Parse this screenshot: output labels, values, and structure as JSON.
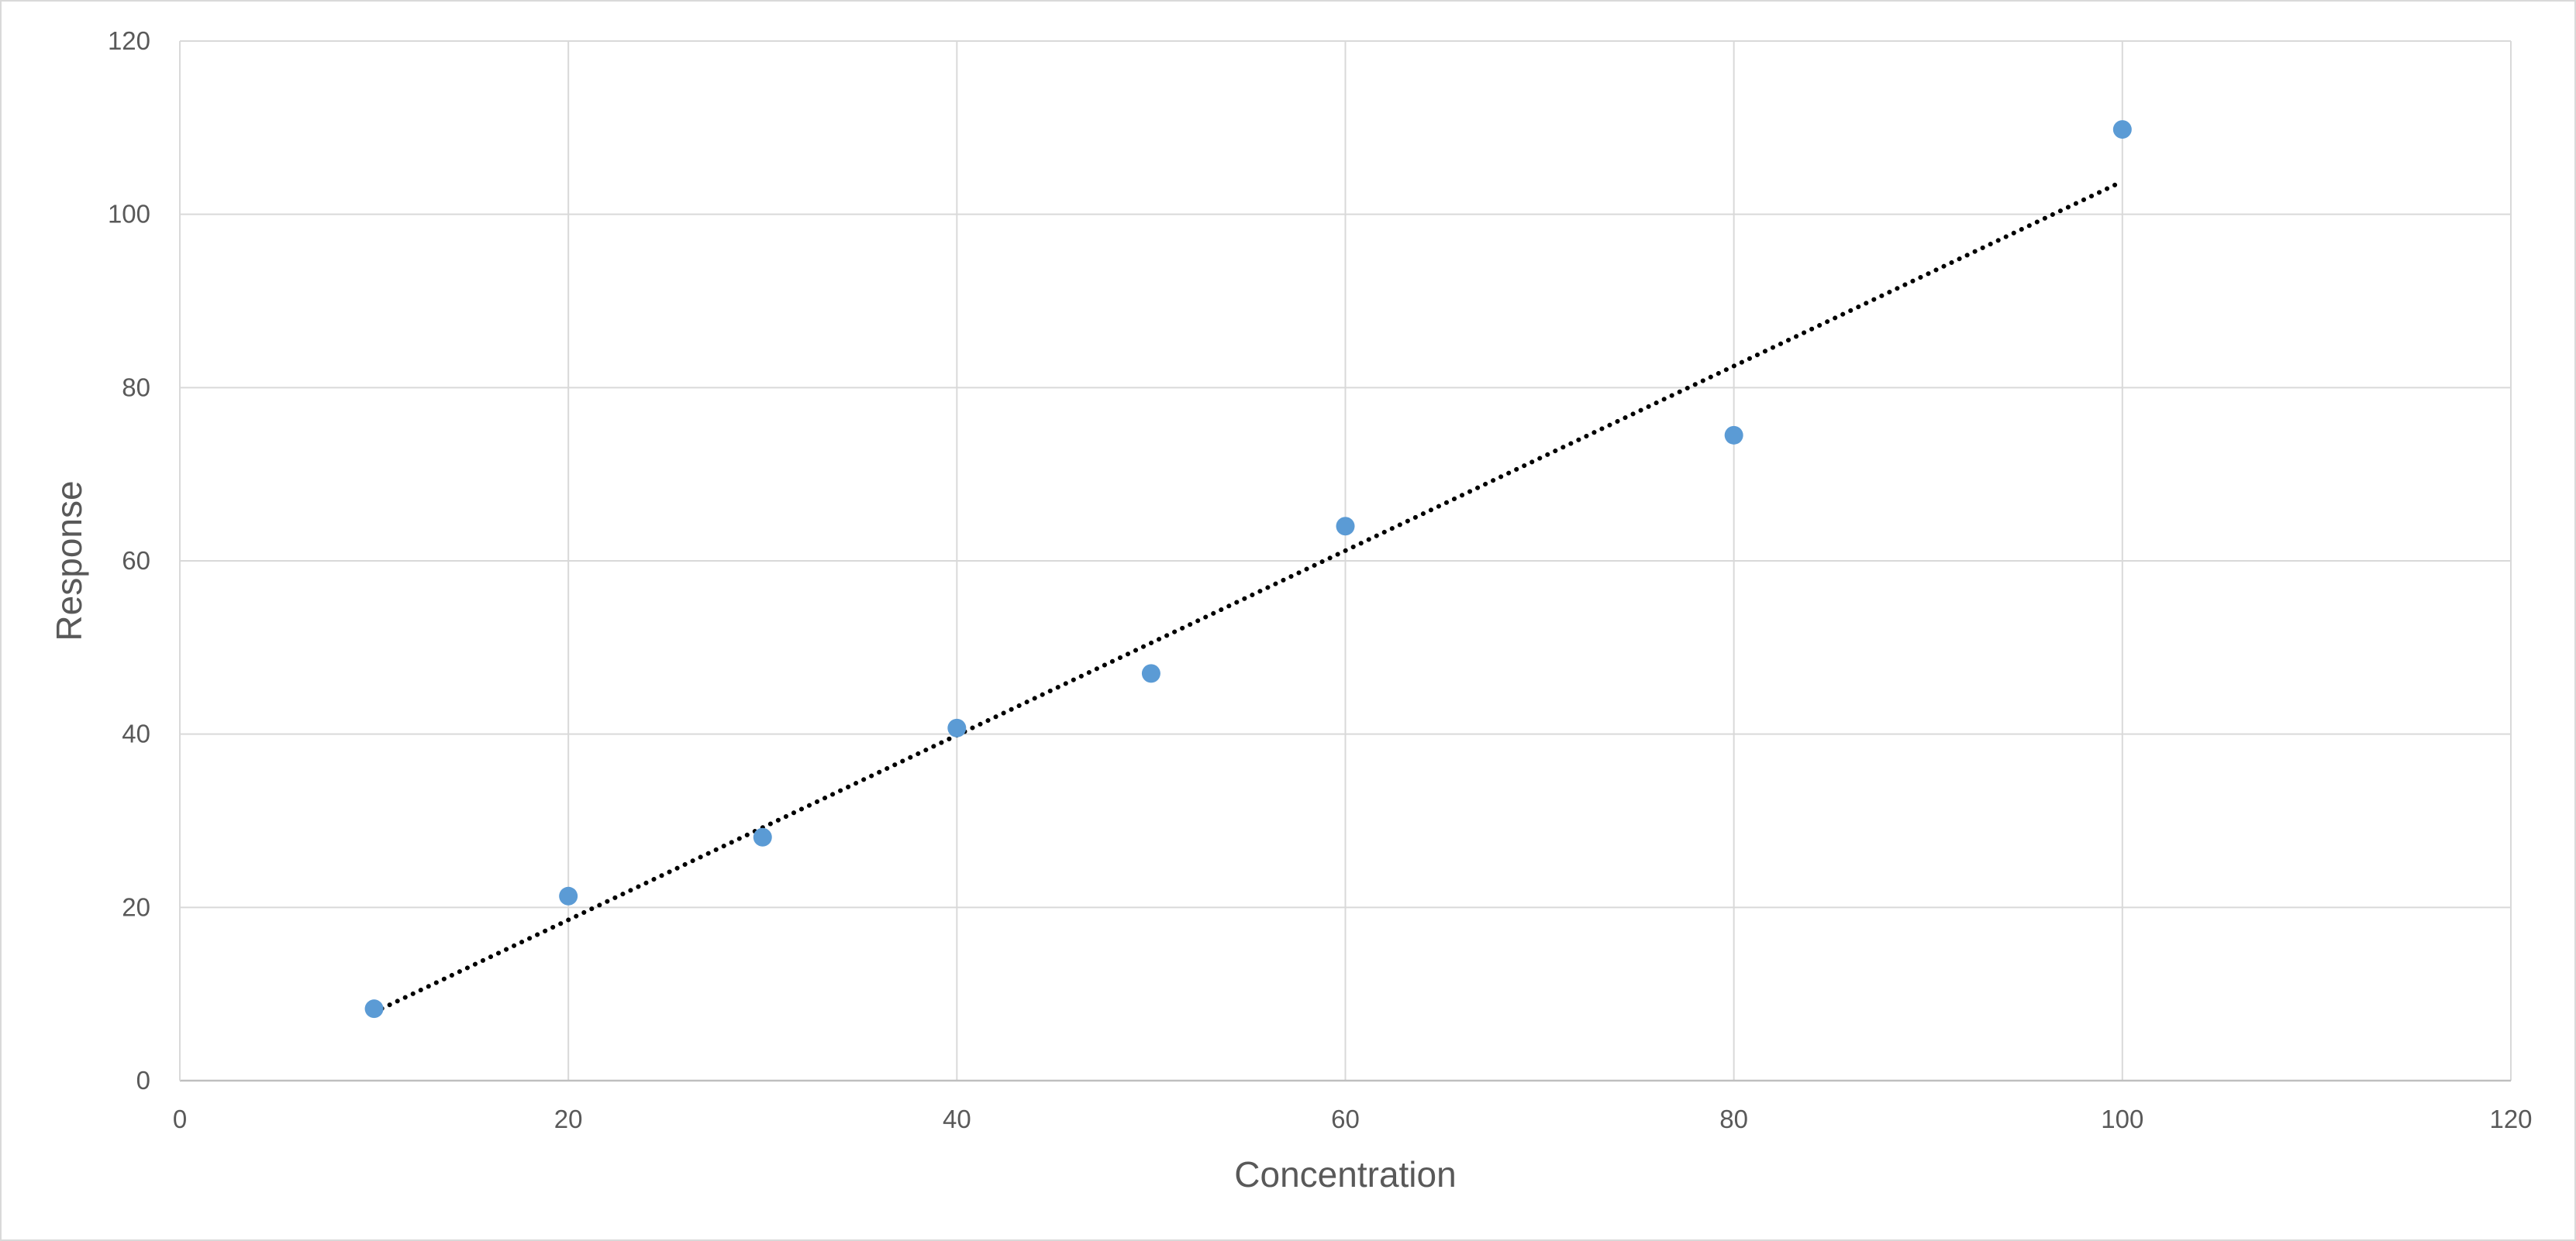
{
  "chart_data": {
    "type": "scatter",
    "title": "",
    "xlabel": "Concentration",
    "ylabel": "Response",
    "xlim": [
      0,
      120
    ],
    "ylim": [
      0,
      120
    ],
    "xticks": [
      0,
      20,
      40,
      60,
      80,
      100,
      120
    ],
    "yticks": [
      0,
      20,
      40,
      60,
      80,
      100,
      120
    ],
    "grid": true,
    "legend": "none",
    "series": [
      {
        "x": [
          10,
          20,
          30,
          40,
          50,
          60,
          80,
          100
        ],
        "y": [
          8.3,
          21.3,
          28.1,
          40.7,
          47.0,
          64.0,
          74.5,
          109.8
        ],
        "color": "#5b9bd5"
      }
    ],
    "trendline": {
      "style": "dotted",
      "color": "#000000",
      "x": [
        10,
        100
      ],
      "y": [
        7.9,
        103.8
      ]
    }
  }
}
